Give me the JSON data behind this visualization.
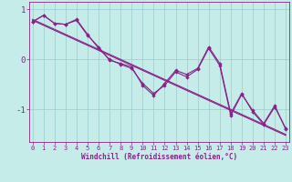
{
  "xlabel": "Windchill (Refroidissement éolien,°C)",
  "bg_color": "#c5ece8",
  "line_color": "#882288",
  "grid_color": "#99cccc",
  "x_values": [
    0,
    1,
    2,
    3,
    4,
    5,
    6,
    7,
    8,
    9,
    10,
    11,
    12,
    13,
    14,
    15,
    16,
    17,
    18,
    19,
    20,
    21,
    22,
    23
  ],
  "y_main1": [
    0.75,
    0.88,
    0.72,
    0.7,
    0.8,
    0.5,
    0.22,
    0.0,
    -0.1,
    -0.18,
    -0.48,
    -0.68,
    -0.52,
    -0.25,
    -0.35,
    -0.2,
    0.22,
    -0.12,
    -1.12,
    -0.7,
    -1.02,
    -1.28,
    -0.92,
    -1.4
  ],
  "y_main2": [
    0.75,
    0.88,
    0.72,
    0.7,
    0.78,
    0.48,
    0.25,
    -0.02,
    -0.08,
    -0.15,
    -0.52,
    -0.72,
    -0.48,
    -0.22,
    -0.3,
    -0.18,
    0.25,
    -0.08,
    -1.08,
    -0.68,
    -1.05,
    -1.3,
    -0.95,
    -1.38
  ],
  "y_trend1": [
    0.8,
    0.7,
    0.6,
    0.5,
    0.4,
    0.3,
    0.2,
    0.1,
    0.0,
    -0.1,
    -0.2,
    -0.3,
    -0.4,
    -0.5,
    -0.6,
    -0.7,
    -0.8,
    -0.9,
    -1.0,
    -1.1,
    -1.2,
    -1.3,
    -1.4,
    -1.5
  ],
  "y_trend2": [
    0.78,
    0.68,
    0.58,
    0.48,
    0.38,
    0.28,
    0.18,
    0.08,
    -0.02,
    -0.12,
    -0.22,
    -0.32,
    -0.42,
    -0.52,
    -0.62,
    -0.72,
    -0.82,
    -0.92,
    -1.02,
    -1.12,
    -1.22,
    -1.32,
    -1.42,
    -1.52
  ],
  "xlim": [
    -0.3,
    23.3
  ],
  "ylim": [
    -1.65,
    1.15
  ],
  "yticks": [
    -1,
    0,
    1
  ],
  "xticks": [
    0,
    1,
    2,
    3,
    4,
    5,
    6,
    7,
    8,
    9,
    10,
    11,
    12,
    13,
    14,
    15,
    16,
    17,
    18,
    19,
    20,
    21,
    22,
    23
  ],
  "xlabel_fontsize": 5.5,
  "ytick_fontsize": 6.5,
  "xtick_fontsize": 5.0,
  "marker_size": 2.2,
  "line_width": 0.8
}
